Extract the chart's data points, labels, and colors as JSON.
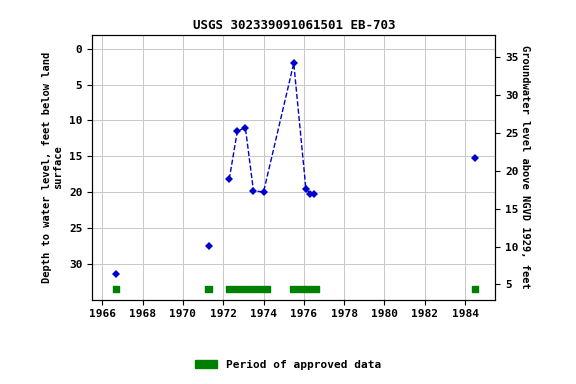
{
  "title": "USGS 302339091061501 EB-703",
  "ylabel_left": "Depth to water level, feet below land\nsurface",
  "ylabel_right": "Groundwater level above NGVD 1929, feet",
  "xlim": [
    1965.5,
    1985.5
  ],
  "ylim_left": [
    35,
    -2
  ],
  "ylim_right": [
    3,
    38
  ],
  "xticks": [
    1966,
    1968,
    1970,
    1972,
    1974,
    1976,
    1978,
    1980,
    1982,
    1984
  ],
  "yticks_left": [
    0,
    5,
    10,
    15,
    20,
    25,
    30
  ],
  "yticks_right": [
    5,
    10,
    15,
    20,
    25,
    30,
    35
  ],
  "data_x": [
    1966.7,
    1971.3,
    1972.3,
    1972.7,
    1973.1,
    1973.5,
    1974.0,
    1975.5,
    1976.1,
    1976.3,
    1976.5,
    1984.5
  ],
  "data_y": [
    31.5,
    27.5,
    18.2,
    11.5,
    11.0,
    19.8,
    20.0,
    2.0,
    19.5,
    20.2,
    20.3,
    15.3
  ],
  "connected_indices": [
    2,
    3,
    4,
    5,
    6,
    7,
    8,
    9,
    10
  ],
  "line_color": "#0000CC",
  "marker_color": "#0000CC",
  "green_bars": [
    {
      "x_start": 1966.55,
      "x_end": 1966.85
    },
    {
      "x_start": 1971.1,
      "x_end": 1971.45
    },
    {
      "x_start": 1972.15,
      "x_end": 1974.3
    },
    {
      "x_start": 1975.3,
      "x_end": 1976.75
    },
    {
      "x_start": 1984.35,
      "x_end": 1984.65
    }
  ],
  "bar_y": 33.5,
  "bar_height": 0.9,
  "bar_color": "#008000",
  "legend_label": "Period of approved data",
  "background_color": "#ffffff",
  "grid_color": "#c8c8c8",
  "font_family": "monospace",
  "title_fontsize": 9,
  "tick_fontsize": 8,
  "ylabel_fontsize": 7.5
}
